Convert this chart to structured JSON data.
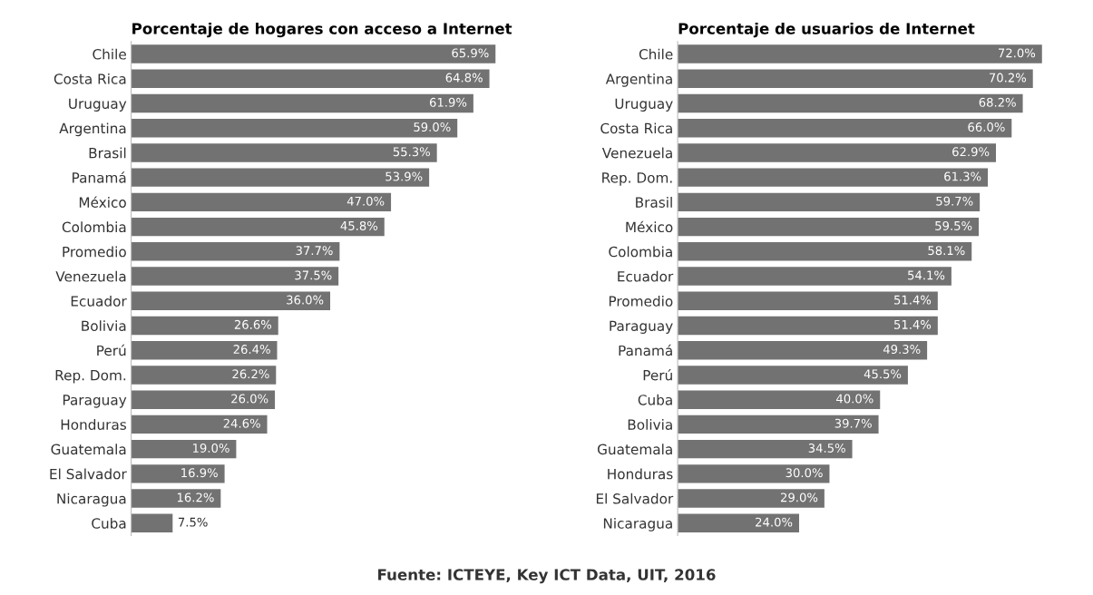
{
  "chart_data": [
    {
      "type": "bar",
      "orientation": "horizontal",
      "title": "Porcentaje de hogares con acceso a Internet",
      "categories": [
        "Chile",
        "Costa Rica",
        "Uruguay",
        "Argentina",
        "Brasil",
        "Panamá",
        "México",
        "Colombia",
        "Promedio",
        "Venezuela",
        "Ecuador",
        "Bolivia",
        "Perú",
        "Rep. Dom.",
        "Paraguay",
        "Honduras",
        "Guatemala",
        "El Salvador",
        "Nicaragua",
        "Cuba"
      ],
      "values": [
        65.9,
        64.8,
        61.9,
        59.0,
        55.3,
        53.9,
        47.0,
        45.8,
        37.7,
        37.5,
        36.0,
        26.6,
        26.4,
        26.2,
        26.0,
        24.6,
        19.0,
        16.9,
        16.2,
        7.5
      ],
      "value_labels": [
        "65.9%",
        "64.8%",
        "61.9%",
        "59.0%",
        "55.3%",
        "53.9%",
        "47.0%",
        "45.8%",
        "37.7%",
        "37.5%",
        "36.0%",
        "26.6%",
        "26.4%",
        "26.2%",
        "26.0%",
        "24.6%",
        "19.0%",
        "16.9%",
        "16.2%",
        "7.5%"
      ],
      "color": "#727272",
      "tick_labels": "y",
      "grid": false,
      "legend": false,
      "annotations": [
        "Fuente: ICTEYE, Key ICT Data, UIT, 2016"
      ]
    },
    {
      "type": "bar",
      "orientation": "horizontal",
      "title": "Porcentaje de usuarios de Internet",
      "categories": [
        "Chile",
        "Argentina",
        "Uruguay",
        "Costa Rica",
        "Venezuela",
        "Rep. Dom.",
        "Brasil",
        "México",
        "Colombia",
        "Ecuador",
        "Promedio",
        "Paraguay",
        "Panamá",
        "Perú",
        "Cuba",
        "Bolivia",
        "Guatemala",
        "Honduras",
        "El Salvador",
        "Nicaragua"
      ],
      "values": [
        72.0,
        70.2,
        68.2,
        66.0,
        62.9,
        61.3,
        59.7,
        59.5,
        58.1,
        54.1,
        51.4,
        51.4,
        49.3,
        45.5,
        40.0,
        39.7,
        34.5,
        30.0,
        29.0,
        24.0
      ],
      "value_labels": [
        "72.0%",
        "70.2%",
        "68.2%",
        "66.0%",
        "62.9%",
        "61.3%",
        "59.7%",
        "59.5%",
        "58.1%",
        "54.1%",
        "51.4%",
        "51.4%",
        "49.3%",
        "45.5%",
        "40.0%",
        "39.7%",
        "34.5%",
        "30.0%",
        "29.0%",
        "24.0%"
      ],
      "color": "#727272",
      "tick_labels": "y",
      "grid": false,
      "legend": false
    }
  ]
}
